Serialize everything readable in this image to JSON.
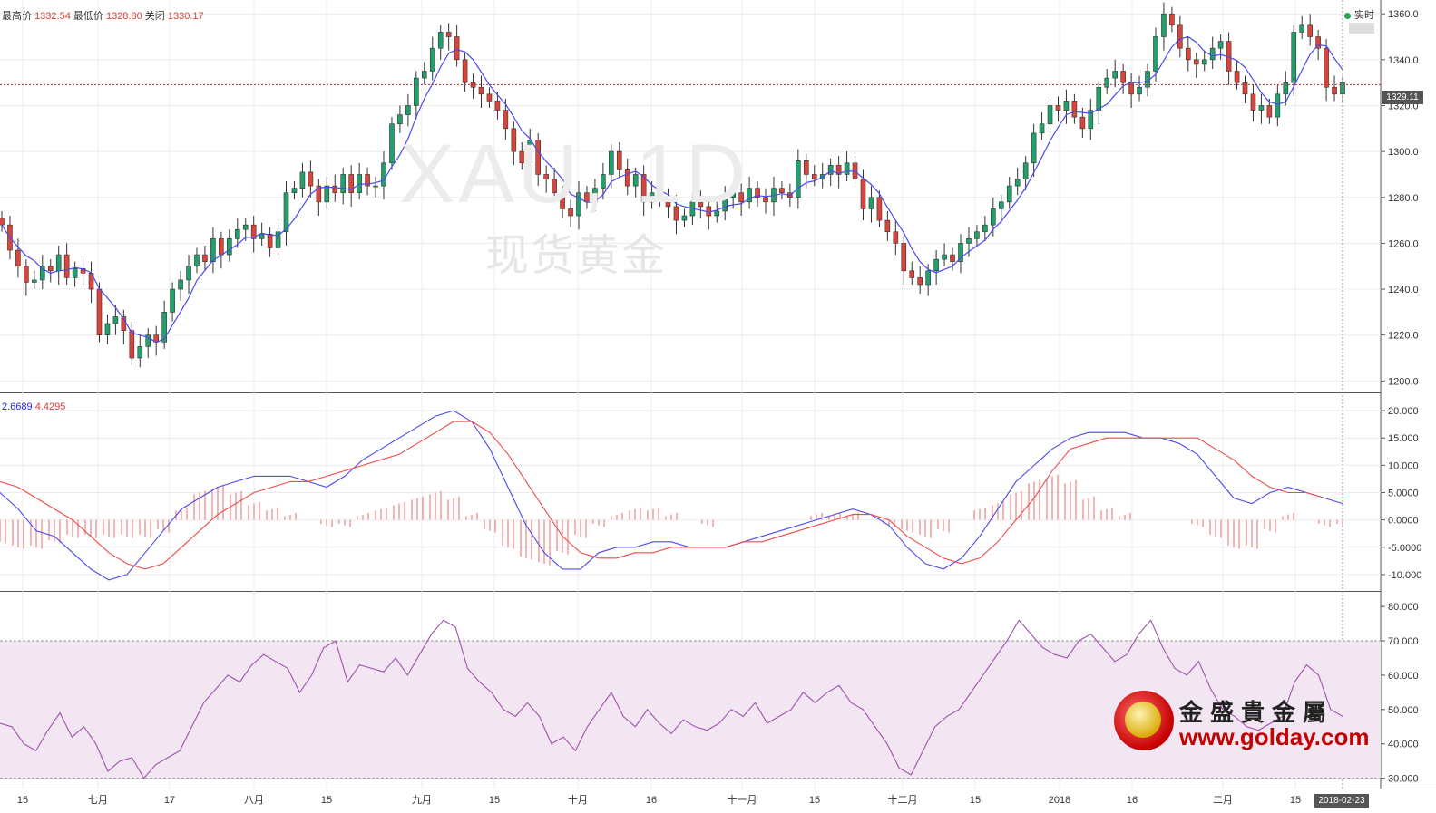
{
  "header": {
    "high_label": "最高价",
    "high_value": "1332.54",
    "low_label": "最低价",
    "low_value": "1328.80",
    "close_label": "关闭",
    "close_value": "1330.17"
  },
  "realtime_label": "实时",
  "watermark": {
    "symbol": "XAU, 1D",
    "name": "现货黄金"
  },
  "macd_header": {
    "dif": "2.6689",
    "dea": "4.4295"
  },
  "current_price": "1329.11",
  "current_date": "2018-02-23",
  "logo": {
    "cn": "金盛貴金屬",
    "url": "www.golday.com"
  },
  "colors": {
    "up": "#22a06b",
    "down": "#d9453b",
    "ma": "#4a4af0",
    "dif": "#4a4af0",
    "dea": "#f04a4a",
    "hist": "#f06a6a",
    "rsi": "#a050b0",
    "rsi_band": "#f3e6f3"
  },
  "chart_data": [
    {
      "type": "candlestick",
      "title": "",
      "x_ticks": [
        "15",
        "七月",
        "17",
        "八月",
        "15",
        "九月",
        "15",
        "十月",
        "16",
        "十一月",
        "15",
        "十二月",
        "15",
        "2018",
        "16",
        "二月",
        "15"
      ],
      "y_ticks": [
        "1200.0",
        "1220.0",
        "1240.0",
        "1260.0",
        "1280.0",
        "1300.0",
        "1320.0",
        "1340.0",
        "1360.0"
      ],
      "ylim": [
        1200,
        1360
      ],
      "close": [
        1268,
        1257,
        1250,
        1243,
        1244,
        1250,
        1248,
        1255,
        1245,
        1249,
        1247,
        1240,
        1220,
        1225,
        1228,
        1222,
        1210,
        1215,
        1220,
        1217,
        1230,
        1240,
        1244,
        1250,
        1255,
        1252,
        1262,
        1255,
        1262,
        1266,
        1268,
        1262,
        1264,
        1258,
        1265,
        1282,
        1284,
        1291,
        1285,
        1278,
        1285,
        1282,
        1290,
        1282,
        1290,
        1285,
        1285,
        1295,
        1312,
        1316,
        1320,
        1332,
        1335,
        1345,
        1352,
        1350,
        1340,
        1330,
        1328,
        1325,
        1322,
        1318,
        1310,
        1300,
        1295,
        1305,
        1290,
        1288,
        1282,
        1275,
        1272,
        1282,
        1278,
        1284,
        1290,
        1300,
        1292,
        1285,
        1290,
        1278,
        1282,
        1280,
        1276,
        1270,
        1272,
        1278,
        1276,
        1272,
        1274,
        1280,
        1282,
        1278,
        1284,
        1280,
        1278,
        1284,
        1282,
        1280,
        1296,
        1290,
        1288,
        1290,
        1294,
        1290,
        1295,
        1288,
        1275,
        1280,
        1270,
        1265,
        1260,
        1248,
        1245,
        1242,
        1248,
        1253,
        1255,
        1252,
        1260,
        1262,
        1265,
        1268,
        1275,
        1278,
        1285,
        1288,
        1295,
        1308,
        1312,
        1320,
        1318,
        1322,
        1315,
        1310,
        1318,
        1328,
        1332,
        1335,
        1330,
        1325,
        1328,
        1335,
        1350,
        1360,
        1355,
        1345,
        1340,
        1338,
        1340,
        1345,
        1348,
        1335,
        1330,
        1325,
        1318,
        1320,
        1315,
        1325,
        1330,
        1352,
        1355,
        1350,
        1345,
        1328,
        1325,
        1330
      ],
      "sma_period": 5
    },
    {
      "type": "line",
      "title": "",
      "y_ticks": [
        "-10.000",
        "-5.0000",
        "0.0000",
        "5.0000",
        "10.000",
        "15.000",
        "20.000"
      ],
      "ylim": [
        -11.5,
        20
      ],
      "series": [
        {
          "name": "2.6689",
          "values": [
            5,
            2,
            -2,
            -3,
            -6,
            -9,
            -11,
            -10,
            -6,
            -2,
            2,
            4,
            6,
            7,
            8,
            8,
            8,
            7,
            6,
            8,
            11,
            13,
            15,
            17,
            19,
            20,
            18,
            13,
            6,
            -1,
            -6,
            -9,
            -9,
            -6,
            -5,
            -5,
            -4,
            -4,
            -5,
            -5,
            -5,
            -4,
            -3,
            -2,
            -1,
            0,
            1,
            2,
            1,
            -1,
            -5,
            -8,
            -9,
            -7,
            -3,
            2,
            7,
            10,
            13,
            15,
            16,
            16,
            16,
            15,
            15,
            14,
            12,
            8,
            4,
            3,
            5,
            6,
            5,
            4,
            3
          ]
        },
        {
          "name": "4.4295",
          "values": [
            7,
            6,
            4,
            2,
            0,
            -3,
            -6,
            -8,
            -9,
            -8,
            -5,
            -2,
            1,
            3,
            5,
            6,
            7,
            7,
            8,
            9,
            10,
            11,
            12,
            14,
            16,
            18,
            18,
            16,
            12,
            7,
            2,
            -3,
            -6,
            -7,
            -7,
            -6,
            -6,
            -5,
            -5,
            -5,
            -5,
            -4,
            -4,
            -3,
            -2,
            -1,
            0,
            1,
            1,
            0,
            -3,
            -5,
            -7,
            -8,
            -7,
            -4,
            0,
            4,
            9,
            13,
            14,
            15,
            15,
            15,
            15,
            15,
            15,
            13,
            11,
            8,
            6,
            5,
            5,
            4,
            4
          ]
        },
        {
          "name": "histogram",
          "values": [
            -4,
            -5,
            -5,
            -4,
            -3,
            -3,
            -3,
            -3,
            -3,
            -2,
            2,
            5,
            6,
            5,
            3,
            2,
            1,
            0,
            -1,
            -1,
            1,
            2,
            3,
            4,
            5,
            4,
            1,
            -2,
            -5,
            -7,
            -8,
            -6,
            -3,
            -1,
            1,
            2,
            2,
            1,
            0,
            -1,
            0,
            0,
            0,
            0,
            0,
            1,
            1,
            1,
            0,
            -1,
            -2,
            -3,
            -2,
            0,
            2,
            3,
            5,
            7,
            8,
            7,
            4,
            2,
            1,
            0,
            0,
            0,
            -1,
            -3,
            -5,
            -5,
            -2,
            1,
            0,
            -1,
            -1
          ]
        }
      ]
    },
    {
      "type": "line",
      "title": "",
      "y_ticks": [
        "30.000",
        "40.000",
        "50.000",
        "60.000",
        "70.000",
        "80.000"
      ],
      "ylim": [
        30,
        80
      ],
      "band": [
        30,
        70
      ],
      "series": [
        {
          "name": "",
          "values": [
            46,
            45,
            40,
            38,
            44,
            49,
            42,
            45,
            40,
            32,
            35,
            36,
            30,
            34,
            36,
            38,
            45,
            52,
            56,
            60,
            58,
            63,
            66,
            64,
            62,
            55,
            60,
            68,
            70,
            58,
            63,
            62,
            61,
            65,
            60,
            66,
            72,
            76,
            74,
            62,
            58,
            55,
            50,
            48,
            52,
            48,
            40,
            42,
            38,
            45,
            50,
            55,
            48,
            45,
            50,
            46,
            43,
            47,
            45,
            44,
            46,
            50,
            48,
            52,
            46,
            48,
            50,
            55,
            52,
            55,
            57,
            52,
            50,
            45,
            40,
            33,
            31,
            38,
            45,
            48,
            50,
            55,
            60,
            65,
            70,
            76,
            72,
            68,
            66,
            65,
            70,
            72,
            68,
            64,
            66,
            72,
            76,
            68,
            62,
            60,
            64,
            56,
            50,
            48,
            45,
            44,
            46,
            48,
            58,
            63,
            60,
            50,
            48
          ]
        }
      ]
    }
  ]
}
